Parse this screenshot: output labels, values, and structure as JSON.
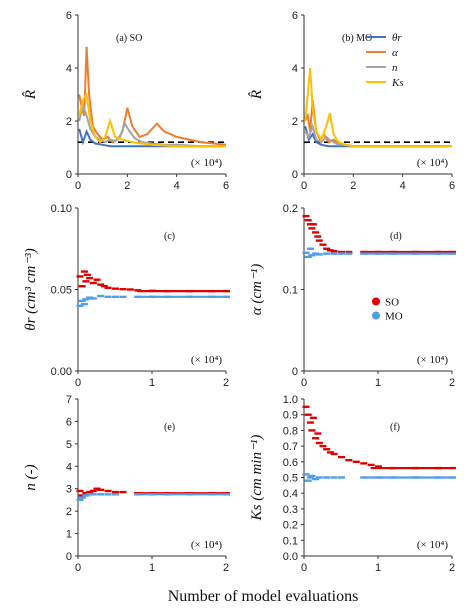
{
  "figure": {
    "xlabel": "Number of model evaluations",
    "scale_note": "(× 10⁴)"
  },
  "colors": {
    "theta_r": "#4472C4",
    "alpha": "#ED7D31",
    "n": "#A5A5A5",
    "Ks": "#FFC000",
    "SO": "#E00000",
    "MO": "#4F9EEA",
    "threshold": "#000000"
  },
  "chart_data": [
    {
      "id": "a",
      "type": "line",
      "panel_label": "(a)",
      "tag": "SO",
      "ylabel": "R̂",
      "xlim": [
        0,
        6
      ],
      "ylim": [
        0,
        6
      ],
      "xticks": [
        "0",
        "2",
        "4",
        "6"
      ],
      "yticks": [
        "0",
        "2",
        "4",
        "6"
      ],
      "threshold": 1.2,
      "series": [
        {
          "name": "θr",
          "color": "#4472C4",
          "x": [
            0.05,
            0.2,
            0.35,
            0.5,
            0.7,
            1.0,
            1.3,
            1.6,
            2,
            3,
            4,
            5,
            6
          ],
          "y": [
            1.7,
            1.2,
            1.6,
            1.3,
            1.15,
            1.1,
            1.05,
            1.05,
            1.05,
            1.05,
            1.05,
            1.05,
            1.05
          ]
        },
        {
          "name": "α",
          "color": "#ED7D31",
          "x": [
            0.05,
            0.15,
            0.25,
            0.35,
            0.45,
            0.6,
            0.8,
            1.0,
            1.2,
            1.4,
            1.6,
            1.8,
            2.0,
            2.2,
            2.5,
            2.8,
            3.2,
            3.5,
            4.0,
            4.5,
            5.0,
            5.5,
            6.0
          ],
          "y": [
            3.0,
            2.5,
            2.2,
            4.8,
            3.0,
            1.8,
            1.5,
            1.3,
            1.4,
            1.2,
            1.3,
            1.6,
            2.5,
            1.8,
            1.4,
            1.5,
            1.9,
            1.6,
            1.4,
            1.3,
            1.2,
            1.15,
            1.1
          ]
        },
        {
          "name": "n",
          "color": "#A5A5A5",
          "x": [
            0.05,
            0.2,
            0.35,
            0.5,
            0.7,
            0.9,
            1.1,
            1.3,
            1.5,
            1.7,
            1.9,
            2.1,
            2.3,
            2.6,
            3.0,
            3.5,
            4,
            5,
            6
          ],
          "y": [
            2.0,
            2.6,
            2.2,
            1.7,
            1.4,
            1.3,
            1.2,
            1.3,
            1.25,
            1.4,
            1.9,
            1.6,
            1.35,
            1.2,
            1.15,
            1.1,
            1.1,
            1.05,
            1.05
          ]
        },
        {
          "name": "Ks",
          "color": "#FFC000",
          "x": [
            0.05,
            0.2,
            0.35,
            0.5,
            0.7,
            0.9,
            1.1,
            1.3,
            1.5,
            1.8,
            2.2,
            2.6,
            3,
            4,
            5,
            6
          ],
          "y": [
            2.2,
            2.8,
            3.0,
            2.0,
            1.4,
            1.2,
            1.4,
            2.0,
            1.4,
            1.3,
            1.2,
            1.15,
            1.1,
            1.05,
            1.05,
            1.05
          ]
        }
      ]
    },
    {
      "id": "b",
      "type": "line",
      "panel_label": "(b)",
      "tag": "MO",
      "ylabel": "R̂",
      "xlim": [
        0,
        6
      ],
      "ylim": [
        0,
        6
      ],
      "xticks": [
        "0",
        "2",
        "4",
        "6"
      ],
      "yticks": [
        "0",
        "2",
        "4",
        "6"
      ],
      "threshold": 1.2,
      "legend": [
        "θr",
        "α",
        "n",
        "Ks"
      ],
      "series": [
        {
          "name": "θr",
          "color": "#4472C4",
          "x": [
            0.05,
            0.2,
            0.35,
            0.5,
            0.7,
            1.0,
            1.3,
            1.6,
            2,
            3,
            4,
            5,
            6
          ],
          "y": [
            1.8,
            1.3,
            1.5,
            1.2,
            1.1,
            1.05,
            1.05,
            1.05,
            1.05,
            1.05,
            1.05,
            1.05,
            1.05
          ]
        },
        {
          "name": "α",
          "color": "#ED7D31",
          "x": [
            0.05,
            0.15,
            0.25,
            0.35,
            0.5,
            0.65,
            0.8,
            1.0,
            1.2,
            1.4,
            1.6,
            2,
            3,
            4,
            5,
            6
          ],
          "y": [
            2.0,
            2.2,
            1.6,
            2.8,
            1.6,
            1.3,
            1.5,
            1.2,
            1.3,
            1.15,
            1.1,
            1.05,
            1.05,
            1.05,
            1.05,
            1.05
          ]
        },
        {
          "name": "n",
          "color": "#A5A5A5",
          "x": [
            0.05,
            0.2,
            0.35,
            0.5,
            0.7,
            0.9,
            1.1,
            1.4,
            1.7,
            2,
            3,
            4,
            5,
            6
          ],
          "y": [
            1.6,
            1.4,
            1.8,
            1.3,
            1.2,
            1.4,
            1.25,
            1.1,
            1.1,
            1.05,
            1.05,
            1.05,
            1.05,
            1.05
          ]
        },
        {
          "name": "Ks",
          "color": "#FFC000",
          "x": [
            0.05,
            0.15,
            0.25,
            0.35,
            0.5,
            0.7,
            0.9,
            1.05,
            1.2,
            1.4,
            1.7,
            2,
            3,
            4,
            5,
            6
          ],
          "y": [
            2.0,
            3.0,
            4.0,
            2.5,
            1.6,
            1.3,
            1.8,
            2.3,
            1.5,
            1.2,
            1.1,
            1.05,
            1.05,
            1.05,
            1.05,
            1.05
          ]
        }
      ]
    },
    {
      "id": "c",
      "type": "scatter",
      "panel_label": "(c)",
      "ylabel": "θr (cm³ cm⁻³)",
      "xlim": [
        0,
        2
      ],
      "ylim": [
        0,
        0.1
      ],
      "xticks": [
        "0",
        "1",
        "2"
      ],
      "yticks": [
        "0.00",
        "0.05",
        "0.10"
      ],
      "series": [
        {
          "name": "SO",
          "color": "#E00000",
          "x": [
            0.02,
            0.05,
            0.08,
            0.1,
            0.12,
            0.15,
            0.2,
            0.25,
            0.3,
            0.35,
            0.4,
            0.5,
            0.6,
            0.7,
            0.8,
            1.0,
            1.2,
            1.5,
            1.8,
            2.0
          ],
          "y": [
            0.058,
            0.052,
            0.061,
            0.055,
            0.059,
            0.057,
            0.054,
            0.056,
            0.053,
            0.052,
            0.051,
            0.0505,
            0.0502,
            0.05,
            0.0495,
            0.0492,
            0.049,
            0.049,
            0.049,
            0.049
          ]
        },
        {
          "name": "MO",
          "color": "#4F9EEA",
          "x": [
            0.02,
            0.05,
            0.08,
            0.1,
            0.15,
            0.2,
            0.3,
            0.4,
            0.5,
            0.6,
            0.8,
            1.0,
            1.2,
            1.5,
            1.8,
            2.0
          ],
          "y": [
            0.04,
            0.043,
            0.041,
            0.044,
            0.045,
            0.0445,
            0.046,
            0.0455,
            0.0455,
            0.0455,
            0.0455,
            0.0455,
            0.0455,
            0.0455,
            0.0455,
            0.0455
          ]
        }
      ]
    },
    {
      "id": "d",
      "type": "scatter",
      "panel_label": "(d)",
      "ylabel": "α (cm⁻¹)",
      "xlim": [
        0,
        2
      ],
      "ylim": [
        0,
        0.2
      ],
      "xticks": [
        "0",
        "1",
        "2"
      ],
      "yticks": [
        "0",
        "0.1",
        "0.2"
      ],
      "legend": [
        "SO",
        "MO"
      ],
      "series": [
        {
          "name": "SO",
          "color": "#E00000",
          "x": [
            0.02,
            0.05,
            0.08,
            0.1,
            0.12,
            0.15,
            0.18,
            0.2,
            0.25,
            0.3,
            0.35,
            0.4,
            0.5,
            0.6,
            0.8,
            1.0,
            1.2,
            1.5,
            1.8,
            2.0
          ],
          "y": [
            0.19,
            0.185,
            0.18,
            0.175,
            0.18,
            0.17,
            0.165,
            0.16,
            0.155,
            0.15,
            0.148,
            0.147,
            0.146,
            0.146,
            0.146,
            0.146,
            0.146,
            0.146,
            0.146,
            0.146
          ]
        },
        {
          "name": "MO",
          "color": "#4F9EEA",
          "x": [
            0.02,
            0.05,
            0.08,
            0.1,
            0.15,
            0.2,
            0.3,
            0.4,
            0.5,
            0.6,
            0.8,
            1.0,
            1.2,
            1.5,
            1.8,
            2.0
          ],
          "y": [
            0.145,
            0.14,
            0.15,
            0.142,
            0.144,
            0.143,
            0.144,
            0.144,
            0.144,
            0.144,
            0.144,
            0.144,
            0.144,
            0.144,
            0.144,
            0.144
          ]
        }
      ]
    },
    {
      "id": "e",
      "type": "scatter",
      "panel_label": "(e)",
      "ylabel": "n (-)",
      "xlim": [
        0,
        2
      ],
      "ylim": [
        0,
        7
      ],
      "xticks": [
        "0",
        "1",
        "2"
      ],
      "yticks": [
        "0",
        "1",
        "2",
        "3",
        "4",
        "5",
        "6",
        "7"
      ],
      "series": [
        {
          "name": "SO",
          "color": "#E00000",
          "x": [
            0.02,
            0.05,
            0.1,
            0.15,
            0.2,
            0.25,
            0.3,
            0.4,
            0.5,
            0.6,
            0.8,
            1.0,
            1.2,
            1.5,
            1.8,
            2.0
          ],
          "y": [
            2.9,
            2.7,
            2.8,
            2.85,
            2.9,
            3.0,
            2.95,
            2.9,
            2.85,
            2.85,
            2.8,
            2.8,
            2.8,
            2.8,
            2.8,
            2.8
          ]
        },
        {
          "name": "MO",
          "color": "#4F9EEA",
          "x": [
            0.02,
            0.05,
            0.1,
            0.15,
            0.2,
            0.3,
            0.4,
            0.5,
            0.8,
            1.0,
            1.2,
            1.5,
            1.8,
            2.0
          ],
          "y": [
            2.5,
            2.6,
            2.7,
            2.75,
            2.75,
            2.75,
            2.75,
            2.75,
            2.75,
            2.75,
            2.75,
            2.75,
            2.75,
            2.75
          ]
        }
      ]
    },
    {
      "id": "f",
      "type": "scatter",
      "panel_label": "(f)",
      "ylabel": "Ks (cm min⁻¹)",
      "xlim": [
        0,
        2
      ],
      "ylim": [
        0,
        1.0
      ],
      "xticks": [
        "0",
        "1",
        "2"
      ],
      "yticks": [
        "0.0",
        "0.1",
        "0.2",
        "0.3",
        "0.4",
        "0.5",
        "0.6",
        "0.7",
        "0.8",
        "0.9",
        "1.0"
      ],
      "series": [
        {
          "name": "SO",
          "color": "#E00000",
          "x": [
            0.02,
            0.05,
            0.08,
            0.1,
            0.12,
            0.15,
            0.18,
            0.2,
            0.25,
            0.3,
            0.35,
            0.4,
            0.5,
            0.6,
            0.7,
            0.8,
            0.9,
            1.0,
            1.2,
            1.5,
            1.8,
            2.0
          ],
          "y": [
            0.95,
            0.9,
            0.85,
            0.8,
            0.88,
            0.75,
            0.78,
            0.72,
            0.7,
            0.68,
            0.66,
            0.65,
            0.63,
            0.61,
            0.6,
            0.59,
            0.58,
            0.57,
            0.56,
            0.56,
            0.56,
            0.56
          ]
        },
        {
          "name": "MO",
          "color": "#4F9EEA",
          "x": [
            0.02,
            0.05,
            0.08,
            0.1,
            0.15,
            0.2,
            0.3,
            0.4,
            0.5,
            0.8,
            1.0,
            1.2,
            1.5,
            1.8,
            2.0
          ],
          "y": [
            0.52,
            0.48,
            0.5,
            0.51,
            0.49,
            0.5,
            0.5,
            0.5,
            0.5,
            0.5,
            0.5,
            0.5,
            0.5,
            0.5,
            0.5
          ]
        }
      ]
    }
  ]
}
